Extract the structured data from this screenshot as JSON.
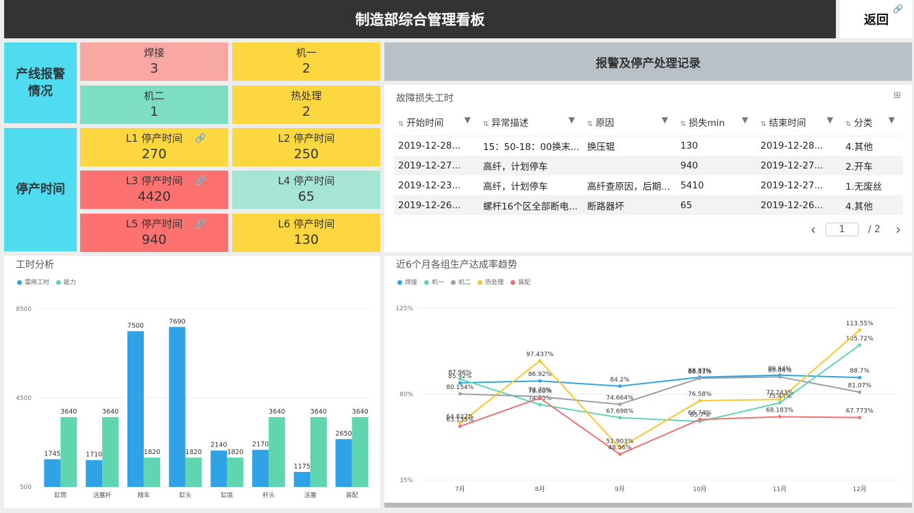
{
  "header": {
    "title": "制造部综合管理看板",
    "back_label": "返回"
  },
  "alerts": {
    "heading": "产线报警\n情况",
    "tiles": [
      {
        "label": "焊接",
        "value": "3"
      },
      {
        "label": "机一",
        "value": "2"
      },
      {
        "label": "机二",
        "value": "1"
      },
      {
        "label": "热处理",
        "value": "2"
      }
    ]
  },
  "downtime": {
    "heading": "停产时间",
    "tiles": [
      {
        "label": "L1 停产时间",
        "value": "270"
      },
      {
        "label": "L2 停产时间",
        "value": "250"
      },
      {
        "label": "L3 停产时间",
        "value": "4420"
      },
      {
        "label": "L4 停产时间",
        "value": "65"
      },
      {
        "label": "L5 停产时间",
        "value": "940"
      },
      {
        "label": "L6 停产时间",
        "value": "130"
      }
    ]
  },
  "records": {
    "heading": "报警及停产处理记录",
    "panel_title": "故障损失工时",
    "columns": [
      "开始时间",
      "异常描述",
      "原因",
      "损失min",
      "结束时间",
      "分类"
    ],
    "rows": [
      [
        "2019-12-28...",
        "15：50-18：00换末...",
        "换压辊",
        "130",
        "2019-12-28...",
        "4.其他"
      ],
      [
        "2019-12-27...",
        "高纤，计划停车",
        "",
        "940",
        "2019-12-27...",
        "2.开车"
      ],
      [
        "2019-12-23...",
        "高纤，计划停车",
        "高纤查原因，后期...",
        "5410",
        "2019-12-27...",
        "1.无废丝"
      ],
      [
        "2019-12-26...",
        "螺杆16个区全部断电...",
        "断路器坏",
        "65",
        "2019-12-26...",
        "4.其他"
      ]
    ],
    "pager": {
      "current": "1",
      "total": "/ 2",
      "prev": "‹",
      "next": "›"
    }
  },
  "colors": {
    "blue": "#2fa3e6",
    "teal": "#5fd6b0",
    "gray": "#97a0ab",
    "yellow": "#f8c72a",
    "red": "#f07072"
  },
  "chart_data": [
    {
      "type": "bar",
      "title": "工时分析",
      "categories": [
        "缸筒",
        "活塞杆",
        "精车",
        "缸头",
        "缸底",
        "杆头",
        "活塞",
        "装配"
      ],
      "series": [
        {
          "name": "需用工时",
          "values": [
            1745,
            1710,
            7500,
            7690,
            2140,
            2170,
            1175,
            2650
          ],
          "color": "#2fa3e6"
        },
        {
          "name": "能力",
          "values": [
            3640,
            3640,
            1820,
            1820,
            1820,
            3640,
            3640,
            3640
          ],
          "color": "#5fd6b0"
        }
      ],
      "ylim": [
        500,
        8500
      ],
      "yticks": [
        "8500",
        "4500",
        "500"
      ],
      "legend": "top-left"
    },
    {
      "type": "line",
      "title": "近6个月各组生产达成率趋势",
      "x": [
        "7月",
        "8月",
        "9月",
        "10月",
        "11月",
        "12月"
      ],
      "series": [
        {
          "name": "焊接",
          "values": [
            85.92,
            86.92,
            84.2,
            88.87,
            89.94,
            88.7
          ],
          "labels": [
            "85.92%",
            "86.92%",
            "84.2%",
            "88.87%",
            "89.94%",
            "88.7%"
          ],
          "color": "#2fa3e6"
        },
        {
          "name": "机一",
          "values": [
            87.96,
            74.53,
            67.698,
            65.7,
            75.44,
            105.72
          ],
          "labels": [
            "87.96%",
            "74.53%",
            "67.698%",
            "65.7%",
            "75.44%",
            "105.72%"
          ],
          "color": "#5fd6b0"
        },
        {
          "name": "机二",
          "values": [
            80.154,
            78.7,
            74.664,
            88.33,
            89.04,
            81.07
          ],
          "labels": [
            "80.154%",
            "78.70%",
            "74.664%",
            "88.33%",
            "89.04%",
            "81.07%"
          ],
          "color": "#97a0ab"
        },
        {
          "name": "热处理",
          "values": [
            64.837,
            97.437,
            51.903,
            76.58,
            77.243,
            113.55
          ],
          "labels": [
            "64.837%",
            "97.437%",
            "51.903%",
            "76.58%",
            "77.243%",
            "113.55%"
          ],
          "color": "#f8c72a"
        },
        {
          "name": "装配",
          "values": [
            63.135,
            78.0,
            48.56,
            66.74,
            68.183,
            67.773
          ],
          "labels": [
            "63.135%",
            "78.00%",
            "48.56%",
            "66.74%",
            "68.183%",
            "67.773%"
          ],
          "color": "#f07072"
        }
      ],
      "ylim": [
        35,
        125
      ],
      "yticks": [
        "125%",
        "80%",
        "35%"
      ],
      "legend": "top-left"
    }
  ]
}
